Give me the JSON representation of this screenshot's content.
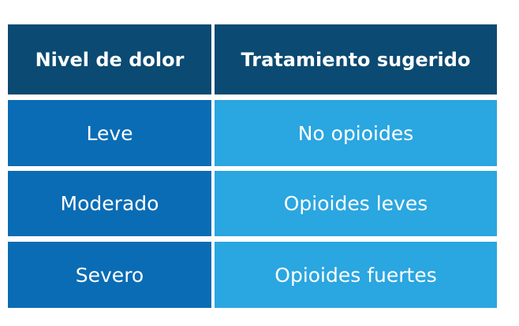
{
  "table": {
    "headers": [
      "Nivel de dolor",
      "Tratamiento sugerido"
    ],
    "rows": [
      [
        "Leve",
        "No opioides"
      ],
      [
        "Moderado",
        "Opioides leves"
      ],
      [
        "Severo",
        "Opioides fuertes"
      ]
    ]
  },
  "colors": {
    "header": "#0b4a72",
    "column1": "#0a6cb4",
    "column2": "#2aa6e0",
    "text": "#ffffff"
  }
}
